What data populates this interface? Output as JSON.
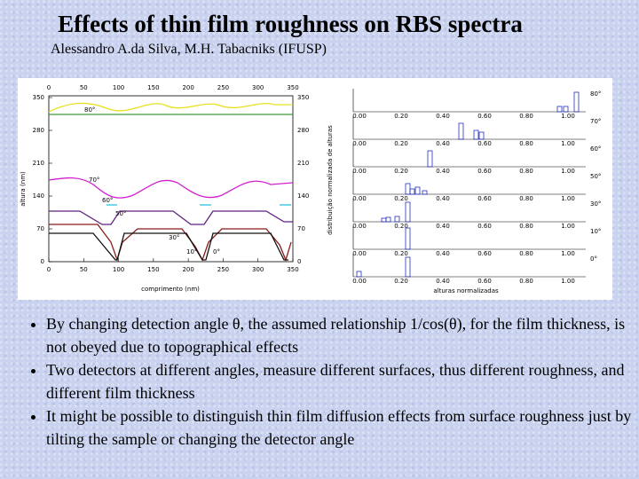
{
  "header": {
    "title": "Effects of thin film roughness on RBS spectra",
    "subtitle": "Alessandro A.da Silva, M.H. Tabacniks (IFUSP)"
  },
  "figure": {
    "left": {
      "y_label": "altura (nm)",
      "x_label": "comprimento (nm)",
      "x_ticks": [
        "0",
        "50",
        "100",
        "150",
        "200",
        "250",
        "300",
        "350"
      ],
      "y_ticks": [
        "350",
        "280",
        "210",
        "140",
        "70",
        "0"
      ],
      "curve_labels": [
        "80°",
        "70°",
        "60°",
        "50°",
        "30°",
        "10°",
        "0°"
      ]
    },
    "right": {
      "y_label": "distribuição normalizada de alturas",
      "x_label": "alturas normalizadas",
      "x_ticks": [
        "0.00",
        "0.20",
        "0.40",
        "0.60",
        "0.80",
        "1.00"
      ],
      "panel_labels": [
        "80°",
        "70°",
        "60°",
        "50°",
        "30°",
        "10°",
        "0°"
      ]
    }
  },
  "bullets": [
    "By changing detection angle θ, the assumed relationship 1/cos(θ), for the film thickness, is not obeyed due to topographical effects",
    "Two detectors at different angles, measure different surfaces, thus different roughness, and different film thickness",
    "It might be possible to distinguish thin film diffusion effects from surface roughness just by tilting the sample or changing the detector angle"
  ]
}
